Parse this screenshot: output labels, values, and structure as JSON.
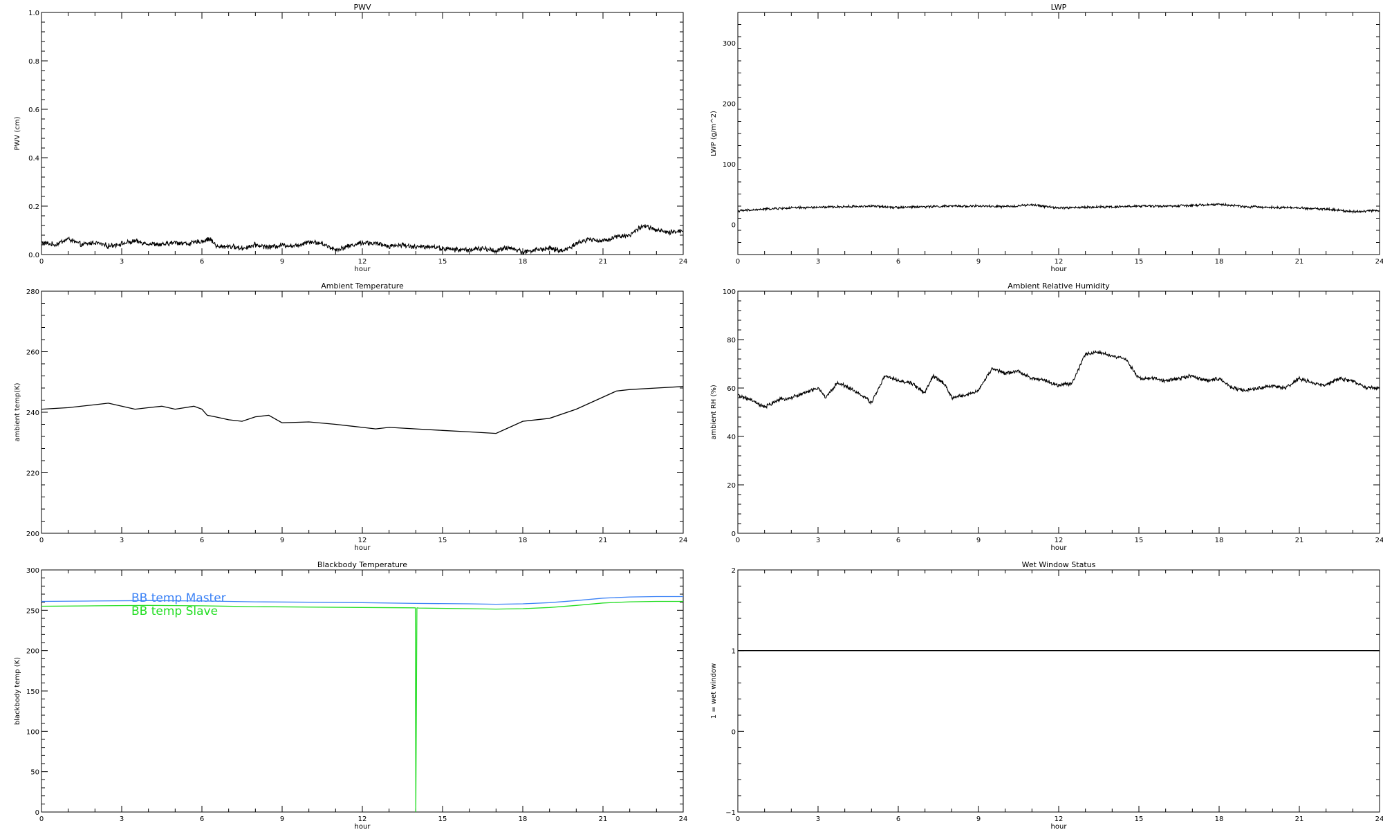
{
  "chart_data": [
    {
      "type": "line",
      "title": "PWV",
      "xlabel": "hour",
      "ylabel": "PWV (cm)",
      "xlim": [
        0,
        24
      ],
      "ylim": [
        0,
        1.0
      ],
      "xticks": [
        0,
        3,
        6,
        9,
        12,
        15,
        18,
        21,
        24
      ],
      "xtick_labels": [
        "0",
        "3",
        "6",
        "9",
        "12",
        "15",
        "18",
        "21",
        "24"
      ],
      "yticks": [
        0,
        0.2,
        0.4,
        0.6,
        0.8,
        1.0
      ],
      "ytick_labels": [
        "0.0",
        "0.2",
        "0.4",
        "0.6",
        "0.8",
        "1.0"
      ],
      "noise": 0.008,
      "series": [
        {
          "color": "#000000",
          "x": [
            0,
            0.5,
            1,
            1.5,
            2,
            2.5,
            3,
            3.5,
            4,
            4.5,
            5,
            5.5,
            6,
            6.3,
            6.6,
            7,
            7.5,
            8,
            8.5,
            9,
            9.5,
            10,
            10.5,
            11,
            11.5,
            12,
            12.5,
            13,
            13.5,
            14,
            14.5,
            15,
            15.5,
            16,
            16.5,
            17,
            17.5,
            18,
            18.5,
            19,
            19.5,
            20,
            20.5,
            21,
            21.5,
            22,
            22.5,
            23,
            23.5,
            24
          ],
          "y": [
            0.05,
            0.04,
            0.065,
            0.04,
            0.05,
            0.035,
            0.045,
            0.055,
            0.045,
            0.04,
            0.05,
            0.045,
            0.055,
            0.065,
            0.03,
            0.035,
            0.025,
            0.04,
            0.03,
            0.04,
            0.035,
            0.055,
            0.045,
            0.02,
            0.035,
            0.05,
            0.045,
            0.035,
            0.04,
            0.03,
            0.035,
            0.025,
            0.02,
            0.02,
            0.025,
            0.015,
            0.03,
            0.01,
            0.02,
            0.025,
            0.015,
            0.045,
            0.065,
            0.055,
            0.075,
            0.08,
            0.12,
            0.1,
            0.09,
            0.1
          ]
        }
      ]
    },
    {
      "type": "line",
      "title": "LWP",
      "xlabel": "hour",
      "ylabel": "LWP (g/m^2)",
      "xlim": [
        0,
        24
      ],
      "ylim": [
        -50,
        350
      ],
      "xticks": [
        0,
        3,
        6,
        9,
        12,
        15,
        18,
        21,
        24
      ],
      "xtick_labels": [
        "0",
        "3",
        "6",
        "9",
        "12",
        "15",
        "18",
        "21",
        "24"
      ],
      "yticks": [
        0,
        100,
        200,
        300
      ],
      "ytick_labels": [
        "0",
        "100",
        "200",
        "300"
      ],
      "noise": 1.5,
      "series": [
        {
          "color": "#000000",
          "x": [
            0,
            1,
            2,
            3,
            4,
            5,
            6,
            7,
            8,
            9,
            10,
            11,
            12,
            13,
            14,
            15,
            16,
            17,
            18,
            19,
            20,
            21,
            22,
            23,
            24
          ],
          "y": [
            22,
            25,
            27,
            28,
            29,
            30,
            28,
            29,
            30,
            30,
            29,
            32,
            27,
            28,
            29,
            30,
            30,
            31,
            33,
            29,
            28,
            27,
            25,
            21,
            23
          ]
        }
      ]
    },
    {
      "type": "line",
      "title": "Ambient Temperature",
      "xlabel": "hour",
      "ylabel": "ambient temp(K)",
      "xlim": [
        0,
        24
      ],
      "ylim": [
        200,
        280
      ],
      "xticks": [
        0,
        3,
        6,
        9,
        12,
        15,
        18,
        21,
        24
      ],
      "xtick_labels": [
        "0",
        "3",
        "6",
        "9",
        "12",
        "15",
        "18",
        "21",
        "24"
      ],
      "yticks": [
        200,
        220,
        240,
        260,
        280
      ],
      "ytick_labels": [
        "200",
        "220",
        "240",
        "260",
        "280"
      ],
      "noise": 0,
      "series": [
        {
          "color": "#000000",
          "x": [
            0,
            1,
            2,
            2.5,
            3,
            3.5,
            4,
            4.5,
            5,
            5.7,
            6,
            6.2,
            6.5,
            7,
            7.5,
            8,
            8.5,
            9,
            10,
            11,
            12,
            12.5,
            13,
            14,
            15,
            16,
            17,
            17.5,
            18,
            19,
            20,
            21,
            21.5,
            22,
            23,
            24
          ],
          "y": [
            241,
            241.5,
            242.5,
            243,
            242,
            241,
            241.5,
            242,
            241,
            242,
            241,
            239,
            238.5,
            237.5,
            237,
            238.5,
            239,
            236.5,
            236.8,
            236,
            235,
            234.5,
            235,
            234.5,
            234,
            233.5,
            233,
            235,
            237,
            238,
            241,
            245,
            247,
            247.5,
            248,
            248.5
          ]
        }
      ]
    },
    {
      "type": "line",
      "title": "Ambient Relative Humidity",
      "xlabel": "hour",
      "ylabel": "ambient RH (%)",
      "xlim": [
        0,
        24
      ],
      "ylim": [
        0,
        100
      ],
      "xticks": [
        0,
        3,
        6,
        9,
        12,
        15,
        18,
        21,
        24
      ],
      "xtick_labels": [
        "0",
        "3",
        "6",
        "9",
        "12",
        "15",
        "18",
        "21",
        "24"
      ],
      "yticks": [
        0,
        20,
        40,
        60,
        80,
        100
      ],
      "ytick_labels": [
        "0",
        "20",
        "40",
        "60",
        "80",
        "100"
      ],
      "noise": 0.6,
      "series": [
        {
          "color": "#000000",
          "x": [
            0,
            0.5,
            1,
            1.5,
            2,
            2.5,
            3,
            3.3,
            3.7,
            4,
            4.5,
            5,
            5.5,
            6,
            6.5,
            7,
            7.3,
            7.7,
            8,
            8.5,
            9,
            9.5,
            10,
            10.5,
            11,
            11.5,
            12,
            12.5,
            13,
            13.5,
            14,
            14.5,
            15,
            15.5,
            16,
            16.5,
            17,
            17.5,
            18,
            18.5,
            19,
            19.5,
            20,
            20.5,
            21,
            21.5,
            22,
            22.5,
            23,
            23.5,
            24
          ],
          "y": [
            57,
            55,
            52,
            55,
            56,
            58,
            60,
            56,
            62,
            61,
            58,
            54,
            65,
            63,
            62,
            58,
            65,
            62,
            56,
            57,
            59,
            68,
            66,
            67,
            64,
            63,
            61,
            62,
            74,
            75,
            73,
            72,
            64,
            64,
            63,
            64,
            65,
            63,
            64,
            60,
            59,
            60,
            61,
            60,
            64,
            62,
            61,
            64,
            63,
            60,
            60
          ]
        }
      ]
    },
    {
      "type": "line",
      "title": "Blackbody Temperature",
      "xlabel": "hour",
      "ylabel": "blackbody temp (K)",
      "xlim": [
        0,
        24
      ],
      "ylim": [
        0,
        300
      ],
      "xticks": [
        0,
        3,
        6,
        9,
        12,
        15,
        18,
        21,
        24
      ],
      "xtick_labels": [
        "0",
        "3",
        "6",
        "9",
        "12",
        "15",
        "18",
        "21",
        "24"
      ],
      "yticks": [
        0,
        50,
        100,
        150,
        200,
        250,
        300
      ],
      "ytick_labels": [
        "0",
        "50",
        "100",
        "150",
        "200",
        "250",
        "300"
      ],
      "noise": 0,
      "legend_position": "top-left",
      "series": [
        {
          "name": "BB temp Master",
          "color": "#3b82f6",
          "x": [
            0,
            2,
            4,
            6,
            8,
            10,
            12,
            14,
            16,
            17,
            18,
            19,
            20,
            21,
            22,
            23,
            24
          ],
          "y": [
            261,
            261.5,
            262,
            261.5,
            260.5,
            260,
            259.5,
            258.5,
            258,
            257.5,
            258,
            259.5,
            262,
            265,
            266.5,
            267,
            267
          ]
        },
        {
          "name": "BB temp Slave",
          "color": "#22dd22",
          "x": [
            0,
            2,
            4,
            6,
            8,
            10,
            12,
            13.98,
            14.0,
            14.02,
            14.04,
            14.06,
            14.1,
            16,
            17,
            18,
            19,
            20,
            21,
            22,
            23,
            24
          ],
          "y": [
            255,
            255.5,
            256,
            255.5,
            254.5,
            254,
            253.5,
            253,
            0,
            125,
            252.8,
            253,
            252.8,
            252,
            251.5,
            252,
            253.5,
            256,
            259,
            260.5,
            261,
            261
          ]
        }
      ]
    },
    {
      "type": "line",
      "title": "Wet Window Status",
      "xlabel": "hour",
      "ylabel": "1 = wet window",
      "xlim": [
        0,
        24
      ],
      "ylim": [
        -1,
        2
      ],
      "xticks": [
        0,
        3,
        6,
        9,
        12,
        15,
        18,
        21,
        24
      ],
      "xtick_labels": [
        "0",
        "3",
        "6",
        "9",
        "12",
        "15",
        "18",
        "21",
        "24"
      ],
      "yticks": [
        -1,
        0,
        1,
        2
      ],
      "ytick_labels": [
        "−1",
        "0",
        "1",
        "2"
      ],
      "noise": 0,
      "series": [
        {
          "color": "#000000",
          "x": [
            0,
            24
          ],
          "y": [
            1,
            1
          ]
        }
      ]
    }
  ]
}
